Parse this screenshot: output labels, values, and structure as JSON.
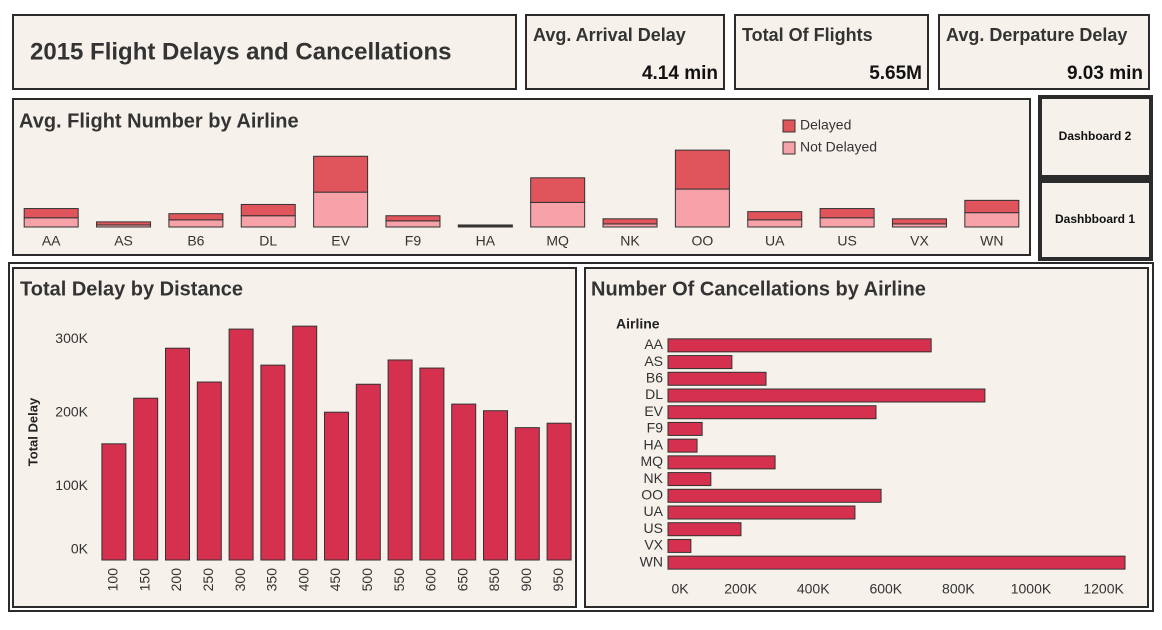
{
  "header": {
    "title": "2015 Flight Delays and Cancellations"
  },
  "kpis": [
    {
      "label": "Avg. Arrival Delay",
      "value": "4.14 min"
    },
    {
      "label": "Total Of Flights",
      "value": "5.65M"
    },
    {
      "label": "Avg. Derpature Delay",
      "value": "9.03 min"
    }
  ],
  "buttons": [
    "Dashboard 2",
    "Dashbboard 1"
  ],
  "chart_data": [
    {
      "type": "stacked_bar",
      "title": "Avg. Flight Number by Airline",
      "categories": [
        "AA",
        "AS",
        "B6",
        "DL",
        "EV",
        "F9",
        "HA",
        "MQ",
        "NK",
        "OO",
        "UA",
        "US",
        "VX",
        "WN"
      ],
      "series": [
        {
          "name": "Not Delayed",
          "color": "#f7a1a9",
          "values": [
            9,
            2,
            7,
            11,
            34,
            6,
            1,
            24,
            3,
            37,
            7,
            9,
            3,
            14
          ]
        },
        {
          "name": "Delayed",
          "color": "#e0545c",
          "values": [
            9,
            3,
            6,
            11,
            35,
            5,
            1,
            24,
            5,
            38,
            8,
            9,
            5,
            12
          ]
        }
      ],
      "ylim": [
        0,
        80
      ],
      "legend": "top-right"
    },
    {
      "type": "bar",
      "title": "Total Delay by Distance",
      "y_label": "Total Delay",
      "categories": [
        "100",
        "150",
        "200",
        "250",
        "300",
        "350",
        "400",
        "450",
        "500",
        "550",
        "600",
        "650",
        "850",
        "900",
        "950"
      ],
      "values": [
        158000,
        220000,
        288000,
        242000,
        314000,
        265000,
        318000,
        201000,
        239000,
        272000,
        261000,
        212000,
        203000,
        180000,
        186000
      ],
      "color": "#d6304f",
      "ylim": [
        0,
        325000
      ],
      "yticks": [
        {
          "value": 0,
          "label": "0K"
        },
        {
          "value": 100000,
          "label": "100K"
        },
        {
          "value": 200000,
          "label": "200K"
        },
        {
          "value": 300000,
          "label": "300K"
        }
      ]
    },
    {
      "type": "hbar",
      "title": "Number Of Cancellations by Airline",
      "y_label": "Airline",
      "categories": [
        "AA",
        "AS",
        "B6",
        "DL",
        "EV",
        "F9",
        "HA",
        "MQ",
        "NK",
        "OO",
        "UA",
        "US",
        "VX",
        "WN"
      ],
      "values": [
        725000,
        176000,
        270000,
        873000,
        573000,
        94000,
        80000,
        295000,
        118000,
        587000,
        515000,
        201000,
        63000,
        1259000
      ],
      "color": "#d6304f",
      "xlim": [
        0,
        1270000
      ],
      "xticks": [
        {
          "value": 0,
          "label": "0K"
        },
        {
          "value": 200000,
          "label": "200K"
        },
        {
          "value": 400000,
          "label": "400K"
        },
        {
          "value": 600000,
          "label": "600K"
        },
        {
          "value": 800000,
          "label": "800K"
        },
        {
          "value": 1000000,
          "label": "1000K"
        },
        {
          "value": 1200000,
          "label": "1200K"
        }
      ]
    }
  ]
}
